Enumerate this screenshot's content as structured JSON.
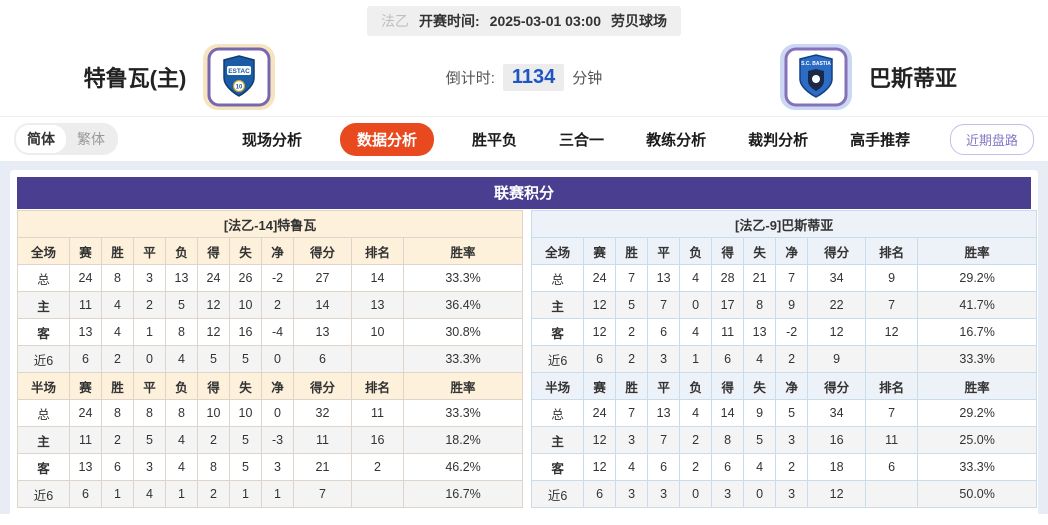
{
  "topbar": {
    "league": "法乙",
    "kickoff_label": "开赛时间:",
    "kickoff_time": "2025-03-01 03:00",
    "venue": "劳贝球场"
  },
  "match_header": {
    "home_team": "特鲁瓦(主)",
    "away_team": "巴斯蒂亚",
    "home_badge_text": "ESTAC",
    "home_badge_number": "10",
    "away_badge_text": "S.C. BASTIA",
    "countdown_label": "倒计时:",
    "countdown_value": "1134",
    "countdown_unit": "分钟"
  },
  "nav": {
    "lang_simplified": "简体",
    "lang_traditional": "繁体",
    "tabs": [
      {
        "name": "tab-live-analysis",
        "label": "现场分析",
        "active": false
      },
      {
        "name": "tab-data-analysis",
        "label": "数据分析",
        "active": true
      },
      {
        "name": "tab-win-draw-loss",
        "label": "胜平负",
        "active": false
      },
      {
        "name": "tab-three-in-one",
        "label": "三合一",
        "active": false
      },
      {
        "name": "tab-coach-analysis",
        "label": "教练分析",
        "active": false
      },
      {
        "name": "tab-referee-analysis",
        "label": "裁判分析",
        "active": false
      },
      {
        "name": "tab-expert-picks",
        "label": "高手推荐",
        "active": false
      }
    ],
    "recent_button": "近期盘路"
  },
  "league_table": {
    "title": "联赛积分",
    "columns_full": [
      "全场",
      "赛",
      "胜",
      "平",
      "负",
      "得",
      "失",
      "净",
      "得分",
      "排名",
      "胜率"
    ],
    "columns_half": [
      "半场",
      "赛",
      "胜",
      "平",
      "负",
      "得",
      "失",
      "净",
      "得分",
      "排名",
      "胜率"
    ],
    "home": {
      "header": "[法乙-14]特鲁瓦",
      "full_rows": [
        {
          "label": "总",
          "type": "total",
          "cells": [
            "24",
            "8",
            "3",
            "13",
            "24",
            "26",
            "-2",
            "27",
            "14",
            "33.3%"
          ]
        },
        {
          "label": "主",
          "type": "home",
          "cells": [
            "11",
            "4",
            "2",
            "5",
            "12",
            "10",
            "2",
            "14",
            "13",
            "36.4%"
          ]
        },
        {
          "label": "客",
          "type": "away",
          "cells": [
            "13",
            "4",
            "1",
            "8",
            "12",
            "16",
            "-4",
            "13",
            "10",
            "30.8%"
          ]
        },
        {
          "label": "近6",
          "type": "recent",
          "cells": [
            "6",
            "2",
            "0",
            "4",
            "5",
            "5",
            "0",
            "6",
            "",
            "33.3%"
          ]
        }
      ],
      "half_rows": [
        {
          "label": "总",
          "type": "total",
          "cells": [
            "24",
            "8",
            "8",
            "8",
            "10",
            "10",
            "0",
            "32",
            "11",
            "33.3%"
          ]
        },
        {
          "label": "主",
          "type": "home",
          "cells": [
            "11",
            "2",
            "5",
            "4",
            "2",
            "5",
            "-3",
            "11",
            "16",
            "18.2%"
          ]
        },
        {
          "label": "客",
          "type": "away",
          "cells": [
            "13",
            "6",
            "3",
            "4",
            "8",
            "5",
            "3",
            "21",
            "2",
            "46.2%"
          ]
        },
        {
          "label": "近6",
          "type": "recent",
          "cells": [
            "6",
            "1",
            "4",
            "1",
            "2",
            "1",
            "1",
            "7",
            "",
            "16.7%"
          ]
        }
      ]
    },
    "away": {
      "header": "[法乙-9]巴斯蒂亚",
      "full_rows": [
        {
          "label": "总",
          "type": "total",
          "cells": [
            "24",
            "7",
            "13",
            "4",
            "28",
            "21",
            "7",
            "34",
            "9",
            "29.2%"
          ]
        },
        {
          "label": "主",
          "type": "home",
          "cells": [
            "12",
            "5",
            "7",
            "0",
            "17",
            "8",
            "9",
            "22",
            "7",
            "41.7%"
          ]
        },
        {
          "label": "客",
          "type": "away",
          "cells": [
            "12",
            "2",
            "6",
            "4",
            "11",
            "13",
            "-2",
            "12",
            "12",
            "16.7%"
          ]
        },
        {
          "label": "近6",
          "type": "recent",
          "cells": [
            "6",
            "2",
            "3",
            "1",
            "6",
            "4",
            "2",
            "9",
            "",
            "33.3%"
          ]
        }
      ],
      "half_rows": [
        {
          "label": "总",
          "type": "total",
          "cells": [
            "24",
            "7",
            "13",
            "4",
            "14",
            "9",
            "5",
            "34",
            "7",
            "29.2%"
          ]
        },
        {
          "label": "主",
          "type": "home",
          "cells": [
            "12",
            "3",
            "7",
            "2",
            "8",
            "5",
            "3",
            "16",
            "11",
            "25.0%"
          ]
        },
        {
          "label": "客",
          "type": "away",
          "cells": [
            "12",
            "4",
            "6",
            "2",
            "6",
            "4",
            "2",
            "18",
            "6",
            "33.3%"
          ]
        },
        {
          "label": "近6",
          "type": "recent",
          "cells": [
            "6",
            "3",
            "3",
            "0",
            "3",
            "0",
            "3",
            "12",
            "",
            "50.0%"
          ]
        }
      ]
    }
  },
  "colors": {
    "accent_orange": "#e8491f",
    "title_purple": "#4a3e91",
    "home_cream": "#fdf1dc",
    "away_lightblue": "#edf1f8",
    "home_row_red": "#e00000",
    "away_row_blue": "#0000cc",
    "countdown_blue": "#1d55c3",
    "section_bg": "#e8ecf4"
  }
}
